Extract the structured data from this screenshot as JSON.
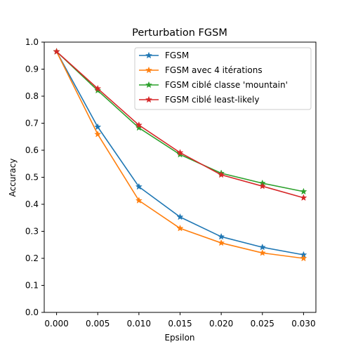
{
  "chart_data": {
    "type": "line",
    "title": "Perturbation FGSM",
    "xlabel": "Epsilon",
    "ylabel": "Accuracy",
    "xlim": [
      -0.0015,
      0.0315
    ],
    "ylim": [
      0.0,
      1.0
    ],
    "xticks": [
      "0.000",
      "0.005",
      "0.010",
      "0.015",
      "0.020",
      "0.025",
      "0.030"
    ],
    "xtick_values": [
      0.0,
      0.005,
      0.01,
      0.015,
      0.02,
      0.025,
      0.03
    ],
    "yticks": [
      "0.0",
      "0.1",
      "0.2",
      "0.3",
      "0.4",
      "0.5",
      "0.6",
      "0.7",
      "0.8",
      "0.9",
      "1.0"
    ],
    "ytick_values": [
      0.0,
      0.1,
      0.2,
      0.3,
      0.4,
      0.5,
      0.6,
      0.7,
      0.8,
      0.9,
      1.0
    ],
    "grid": false,
    "legend_position": "top-right",
    "marker": "star",
    "x": [
      0.0,
      0.005,
      0.01,
      0.015,
      0.02,
      0.025,
      0.03
    ],
    "series": [
      {
        "name": "FGSM",
        "color": "#1f77b4",
        "values": [
          0.965,
          0.686,
          0.465,
          0.353,
          0.28,
          0.241,
          0.213
        ]
      },
      {
        "name": "FGSM avec 4 itérations",
        "color": "#ff7f0e",
        "values": [
          0.965,
          0.659,
          0.414,
          0.311,
          0.257,
          0.22,
          0.2
        ]
      },
      {
        "name": "FGSM ciblé classe 'mountain'",
        "color": "#2ca02c",
        "values": [
          0.965,
          0.821,
          0.683,
          0.584,
          0.515,
          0.478,
          0.447
        ]
      },
      {
        "name": "FGSM ciblé least-likely",
        "color": "#d62728",
        "values": [
          0.965,
          0.828,
          0.693,
          0.591,
          0.509,
          0.467,
          0.424
        ]
      }
    ]
  }
}
